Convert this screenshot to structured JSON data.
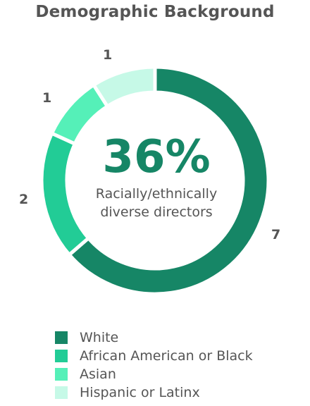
{
  "chart_data": {
    "type": "pie",
    "title": "Demographic Background",
    "center": {
      "value": "36%",
      "label_line1": "Racially/ethnically",
      "label_line2": "diverse directors"
    },
    "slices": [
      {
        "label": "White",
        "value": 7,
        "color": "#168666"
      },
      {
        "label": "African American or Black",
        "value": 2,
        "color": "#22cc96"
      },
      {
        "label": "Asian",
        "value": 1,
        "color": "#55f0b8"
      },
      {
        "label": "Hispanic or Latinx",
        "value": 1,
        "color": "#c6f9e7"
      }
    ],
    "legend_position": "bottom"
  }
}
